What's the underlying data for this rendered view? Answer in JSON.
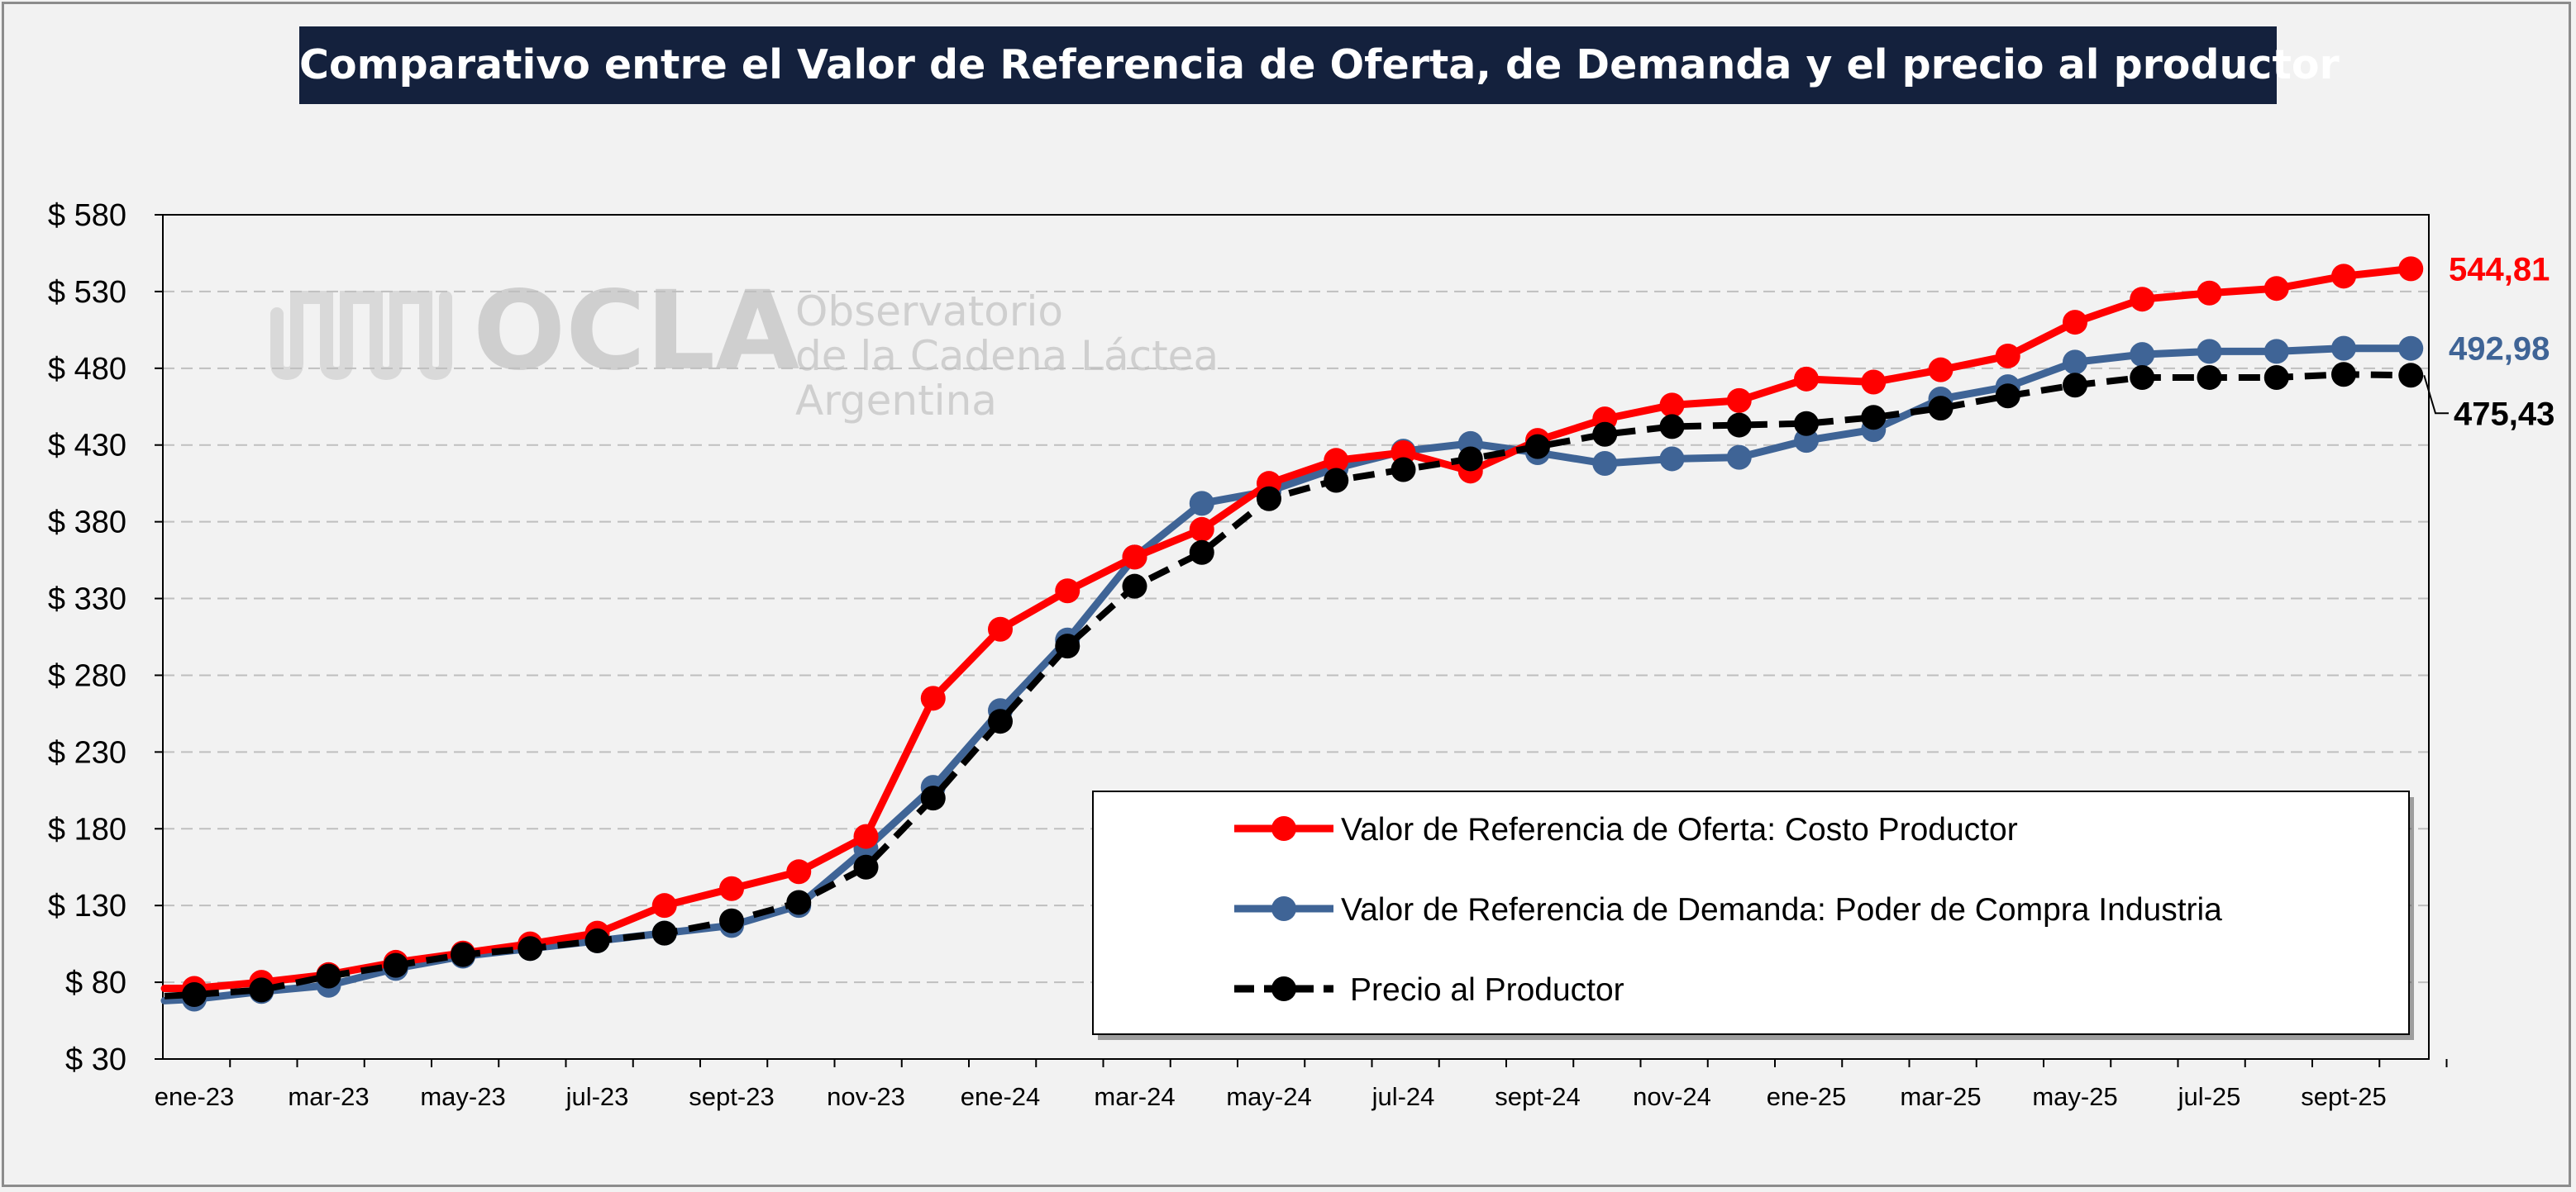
{
  "title": "Comparativo entre el Valor de Referencia de Oferta, de Demanda y el precio al productor",
  "watermark": {
    "logo_text": "OCLA",
    "line1": "Observatorio",
    "line2": "de la Cadena Láctea",
    "line3": "Argentina"
  },
  "colors": {
    "oferta": "#ff0000",
    "demanda": "#3f6496",
    "precio": "#000000",
    "title_bg": "#14213d",
    "grid": "#bfbfbf"
  },
  "chart_data": {
    "type": "line",
    "title": "Comparativo entre el Valor de Referencia de Oferta, de Demanda y el precio al productor",
    "xlabel": "",
    "ylabel": "",
    "ylim": [
      30,
      580
    ],
    "y_ticks": [
      30,
      80,
      130,
      180,
      230,
      280,
      330,
      380,
      430,
      480,
      530,
      580
    ],
    "y_tick_labels": [
      "$ 30",
      "$ 80",
      "$ 130",
      "$ 180",
      "$ 230",
      "$ 280",
      "$ 330",
      "$ 380",
      "$ 430",
      "$ 480",
      "$ 530",
      "$ 580"
    ],
    "x_tick_labels": [
      "ene-23",
      "mar-23",
      "may-23",
      "jul-23",
      "sept-23",
      "nov-23",
      "ene-24",
      "mar-24",
      "may-24",
      "jul-24",
      "sept-24",
      "nov-24",
      "ene-25",
      "mar-25",
      "may-25",
      "jul-25",
      "sept-25"
    ],
    "x": [
      "ene-23",
      "feb-23",
      "mar-23",
      "abr-23",
      "may-23",
      "jun-23",
      "jul-23",
      "ago-23",
      "sept-23",
      "oct-23",
      "nov-23",
      "dic-23",
      "ene-24",
      "feb-24",
      "mar-24",
      "abr-24",
      "may-24",
      "jun-24",
      "jul-24",
      "ago-24",
      "sept-24",
      "oct-24",
      "nov-24",
      "dic-24",
      "ene-25",
      "feb-25",
      "mar-25",
      "abr-25",
      "may-25",
      "jun-25",
      "jul-25",
      "ago-25",
      "sept-25",
      "oct-25"
    ],
    "grid": true,
    "legend_position": "bottom-right",
    "series": [
      {
        "name": "Valor de Referencia de Oferta: Costo Productor",
        "color": "#ff0000",
        "style": "solid",
        "values": [
          76,
          80,
          85,
          93,
          99,
          105,
          112,
          130,
          141,
          152,
          175,
          265,
          310,
          335,
          357,
          375,
          405,
          420,
          425,
          413,
          433,
          447,
          456,
          459,
          473,
          471,
          479,
          488,
          510,
          525,
          529,
          532,
          540,
          544.81
        ],
        "end_label": "544,81"
      },
      {
        "name": "Valor de Referencia de Demanda: Poder de Compra Industria",
        "color": "#3f6496",
        "style": "solid",
        "values": [
          69,
          74,
          78,
          89,
          97,
          102,
          107,
          112,
          117,
          130,
          167,
          207,
          257,
          303,
          357,
          392,
          400,
          415,
          426,
          431,
          425,
          418,
          421,
          422,
          433,
          440,
          460,
          468,
          484,
          489,
          491,
          491,
          493,
          492.98
        ],
        "end_label": "492,98"
      },
      {
        "name": "Precio al Productor",
        "color": "#000000",
        "style": "dashed",
        "values": [
          72,
          75,
          84,
          91,
          98,
          102,
          107,
          112,
          120,
          132,
          155,
          200,
          250,
          299,
          338,
          360,
          395,
          407,
          414,
          421,
          429,
          437,
          442,
          443,
          444,
          448,
          454,
          462,
          469,
          474,
          474,
          474,
          476,
          475.43
        ],
        "end_label": "475,43"
      }
    ]
  }
}
